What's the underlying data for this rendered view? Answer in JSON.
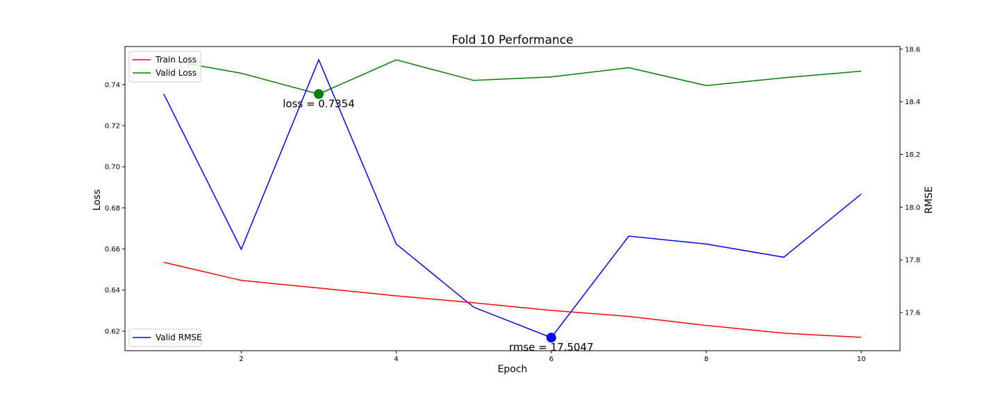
{
  "chart_data": {
    "type": "line",
    "title": "Fold 10 Performance",
    "xlabel": "Epoch",
    "ylabel_left": "Loss",
    "ylabel_right": "RMSE",
    "x": [
      1,
      2,
      3,
      4,
      5,
      6,
      7,
      8,
      9,
      10
    ],
    "xlim": [
      0.5,
      10.5
    ],
    "xticks": [
      2,
      4,
      6,
      8,
      10
    ],
    "ylim_left": [
      0.6105,
      0.7585
    ],
    "yticks_left": [
      0.62,
      0.64,
      0.66,
      0.68,
      0.7,
      0.72,
      0.74
    ],
    "ylim_right": [
      17.455,
      18.61
    ],
    "yticks_right": [
      17.6,
      17.8,
      18.0,
      18.2,
      18.4,
      18.6
    ],
    "grid": false,
    "series": [
      {
        "name": "Train Loss",
        "axis": "left",
        "color": "#ff0000",
        "values": [
          0.6535,
          0.6447,
          0.641,
          0.6372,
          0.6338,
          0.6301,
          0.6272,
          0.6228,
          0.619,
          0.617
        ]
      },
      {
        "name": "Valid Loss",
        "axis": "left",
        "color": "#008000",
        "values": [
          0.7522,
          0.7455,
          0.7354,
          0.752,
          0.742,
          0.7437,
          0.7482,
          0.7395,
          0.7433,
          0.7465
        ]
      },
      {
        "name": "Valid RMSE",
        "axis": "right",
        "color": "#0000ff",
        "values": [
          18.43,
          17.84,
          18.56,
          17.86,
          17.62,
          17.5047,
          17.89,
          17.86,
          17.81,
          18.05
        ]
      }
    ],
    "legends": [
      {
        "placement": "top-left",
        "entries": [
          "Train Loss",
          "Valid Loss"
        ]
      },
      {
        "placement": "bottom-left",
        "entries": [
          "Valid RMSE"
        ]
      }
    ],
    "annotations": [
      {
        "text": "loss = 0.7354",
        "x": 3,
        "y": 0.7354,
        "axis": "left",
        "color": "#008000"
      },
      {
        "text": "rmse = 17.5047",
        "x": 6,
        "y": 17.5047,
        "axis": "right",
        "color": "#0000ff"
      }
    ]
  }
}
